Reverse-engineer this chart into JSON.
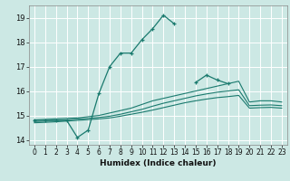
{
  "xlabel": "Humidex (Indice chaleur)",
  "background_color": "#cce8e4",
  "grid_color": "#ffffff",
  "line_color": "#1a7a6e",
  "xlim": [
    -0.5,
    23.5
  ],
  "ylim": [
    13.8,
    19.5
  ],
  "xticks": [
    0,
    1,
    2,
    3,
    4,
    5,
    6,
    7,
    8,
    9,
    10,
    11,
    12,
    13,
    14,
    15,
    16,
    17,
    18,
    19,
    20,
    21,
    22,
    23
  ],
  "yticks": [
    14,
    15,
    16,
    17,
    18,
    19
  ],
  "main_line": {
    "x": [
      0,
      1,
      2,
      3,
      4,
      5,
      6,
      7,
      8,
      9,
      10,
      11,
      12,
      13,
      14,
      15,
      16,
      17,
      18,
      19,
      20,
      21,
      22,
      23
    ],
    "y": [
      14.8,
      14.8,
      14.8,
      14.8,
      14.1,
      14.4,
      15.9,
      17.0,
      17.55,
      17.55,
      18.1,
      18.55,
      19.1,
      18.75,
      null,
      16.35,
      16.65,
      16.45,
      16.3,
      null,
      null,
      null,
      null,
      null
    ]
  },
  "line1": {
    "x": [
      0,
      1,
      2,
      3,
      4,
      5,
      6,
      7,
      8,
      9,
      10,
      11,
      12,
      13,
      14,
      15,
      16,
      17,
      18,
      19,
      20,
      21,
      22,
      23
    ],
    "y": [
      14.82,
      14.84,
      14.86,
      14.88,
      14.9,
      14.95,
      15.0,
      15.1,
      15.2,
      15.3,
      15.45,
      15.6,
      15.7,
      15.8,
      15.9,
      16.0,
      16.1,
      16.2,
      16.3,
      16.4,
      15.55,
      15.6,
      15.6,
      15.55
    ]
  },
  "line2": {
    "x": [
      0,
      1,
      2,
      3,
      4,
      5,
      6,
      7,
      8,
      9,
      10,
      11,
      12,
      13,
      14,
      15,
      16,
      17,
      18,
      19,
      20,
      21,
      22,
      23
    ],
    "y": [
      14.75,
      14.77,
      14.79,
      14.82,
      14.85,
      14.88,
      14.92,
      14.97,
      15.05,
      15.15,
      15.25,
      15.38,
      15.5,
      15.6,
      15.7,
      15.8,
      15.88,
      15.95,
      16.0,
      16.05,
      15.4,
      15.42,
      15.43,
      15.4
    ]
  },
  "line3": {
    "x": [
      0,
      1,
      2,
      3,
      4,
      5,
      6,
      7,
      8,
      9,
      10,
      11,
      12,
      13,
      14,
      15,
      16,
      17,
      18,
      19,
      20,
      21,
      22,
      23
    ],
    "y": [
      14.7,
      14.72,
      14.74,
      14.77,
      14.8,
      14.83,
      14.86,
      14.9,
      14.97,
      15.05,
      15.13,
      15.22,
      15.32,
      15.42,
      15.52,
      15.6,
      15.67,
      15.73,
      15.77,
      15.82,
      15.3,
      15.32,
      15.33,
      15.3
    ]
  }
}
